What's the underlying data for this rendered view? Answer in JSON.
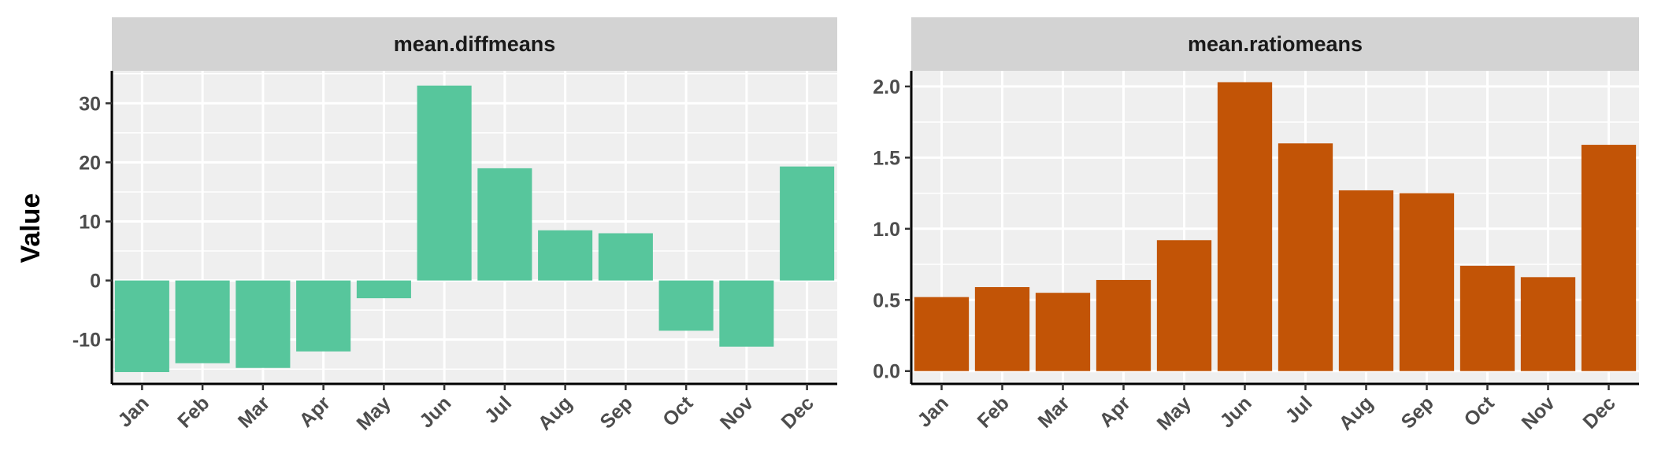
{
  "ylabel": "Value",
  "chart_data": [
    {
      "type": "bar",
      "panel_title": "mean.diffmeans",
      "categories": [
        "Jan",
        "Feb",
        "Mar",
        "Apr",
        "May",
        "Jun",
        "Jul",
        "Aug",
        "Sep",
        "Oct",
        "Nov",
        "Dec"
      ],
      "values": [
        -15.5,
        -14,
        -14.8,
        -12,
        -3,
        33,
        19,
        8.5,
        8,
        -8.5,
        -11.2,
        19.3
      ],
      "ylim": [
        -17.5,
        35.5
      ],
      "yticks": [
        -10,
        0,
        10,
        20,
        30
      ],
      "ytick_labels": [
        "-10",
        "0",
        "10",
        "20",
        "30"
      ],
      "color": "#57C69C",
      "grid": true
    },
    {
      "type": "bar",
      "panel_title": "mean.ratiomeans",
      "categories": [
        "Jan",
        "Feb",
        "Mar",
        "Apr",
        "May",
        "Jun",
        "Jul",
        "Aug",
        "Sep",
        "Oct",
        "Nov",
        "Dec"
      ],
      "values": [
        0.52,
        0.59,
        0.55,
        0.64,
        0.92,
        2.03,
        1.6,
        1.27,
        1.25,
        0.74,
        0.66,
        1.59
      ],
      "ylim": [
        -0.09,
        2.11
      ],
      "yticks": [
        0.0,
        0.5,
        1.0,
        1.5,
        2.0
      ],
      "ytick_labels": [
        "0.0",
        "0.5",
        "1.0",
        "1.5",
        "2.0"
      ],
      "color": "#C25406",
      "grid": true
    }
  ]
}
